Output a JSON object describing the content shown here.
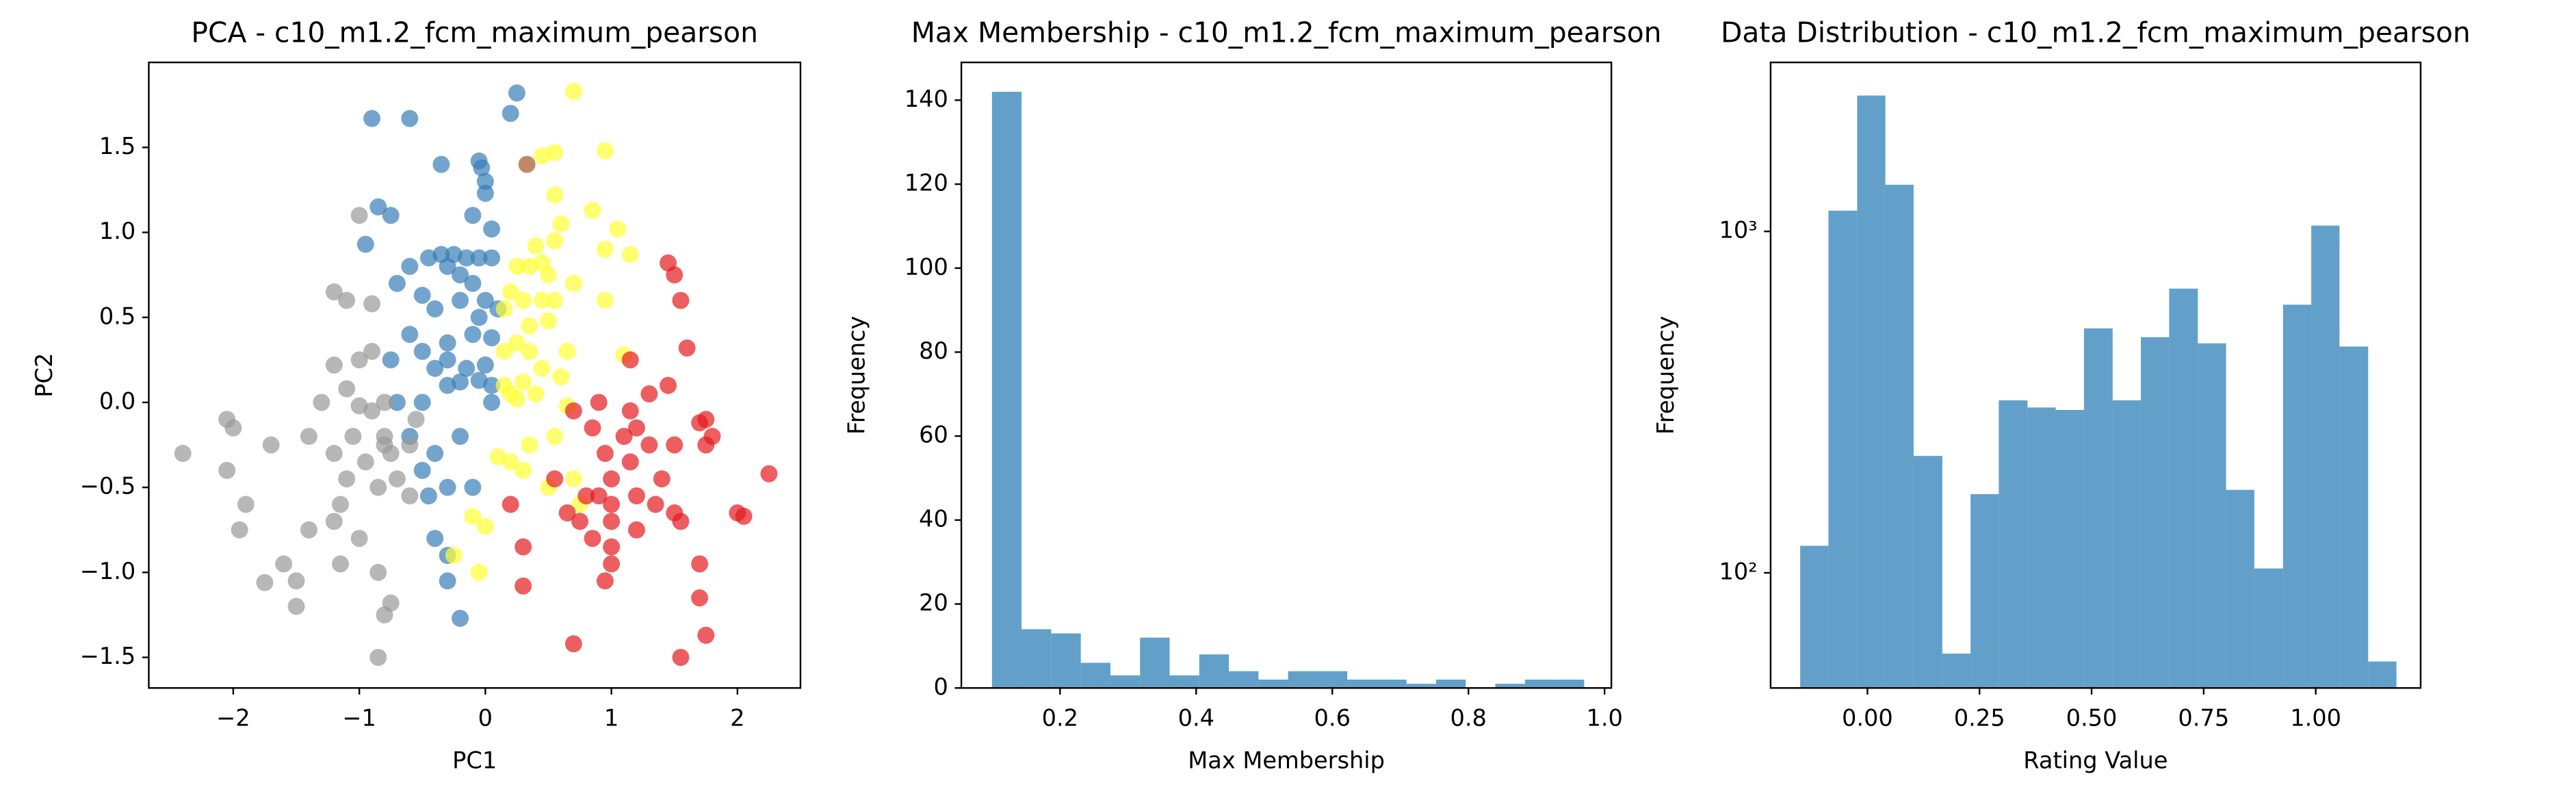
{
  "chart_data": [
    {
      "type": "scatter",
      "title": "PCA - c10_m1.2_fcm_maximum_pearson",
      "xlabel": "PC1",
      "ylabel": "PC2",
      "xlim": [
        -2.67,
        2.5
      ],
      "ylim": [
        -1.68,
        2.0
      ],
      "xticks": [
        {
          "value": -2,
          "label": "−2"
        },
        {
          "value": -1,
          "label": "−1"
        },
        0,
        1,
        2
      ],
      "yticks": [
        {
          "value": -1.5,
          "label": "−1.5"
        },
        {
          "value": -1.0,
          "label": "−1.0"
        },
        {
          "value": -0.5,
          "label": "−0.5"
        },
        {
          "value": 0.0,
          "label": "0.0"
        },
        0.5,
        {
          "value": 1.0,
          "label": "1.0"
        },
        1.5
      ],
      "series": [
        {
          "color": "#377eb8",
          "x": [
            -0.9,
            -0.6,
            0.2,
            0.25,
            -0.05,
            -0.03,
            0.0,
            -0.35,
            -0.85,
            -0.75,
            -0.1,
            0.0,
            0.05,
            -0.95,
            -0.6,
            -0.7,
            -0.45,
            -0.35,
            -0.25,
            -0.15,
            -0.05,
            0.05,
            -0.2,
            -0.1,
            -0.3,
            -0.5,
            -0.4,
            -0.2,
            0.0,
            0.1,
            -0.05,
            -0.6,
            -0.3,
            -0.1,
            0.05,
            -0.5,
            -0.75,
            -0.4,
            -0.3,
            -0.15,
            0.0,
            -0.3,
            -0.2,
            -0.05,
            0.05,
            -0.7,
            -0.5,
            -0.6,
            -0.4,
            -0.5,
            -0.3,
            -0.45,
            -0.4,
            -0.3,
            -0.3,
            -0.2,
            -0.1,
            -0.2,
            0.05
          ],
          "values": [
            1.67,
            1.67,
            1.7,
            1.82,
            1.42,
            1.38,
            1.3,
            1.4,
            1.15,
            1.1,
            1.1,
            1.23,
            1.02,
            0.93,
            0.8,
            0.7,
            0.85,
            0.87,
            0.87,
            0.85,
            0.85,
            0.85,
            0.75,
            0.7,
            0.8,
            0.63,
            0.55,
            0.6,
            0.6,
            0.55,
            0.5,
            0.4,
            0.35,
            0.4,
            0.38,
            0.3,
            0.25,
            0.2,
            0.25,
            0.2,
            0.22,
            0.1,
            0.12,
            0.13,
            0.1,
            0.0,
            0.0,
            -0.2,
            -0.3,
            -0.4,
            -0.5,
            -0.55,
            -0.8,
            -0.9,
            -1.05,
            -1.27,
            -0.5,
            -0.2,
            0.0
          ]
        },
        {
          "color": "#999999",
          "x": [
            -2.4,
            -2.05,
            -2.0,
            -2.05,
            -1.9,
            -1.95,
            -1.7,
            -1.4,
            -1.6,
            -1.75,
            -1.5,
            -1.4,
            -1.5,
            -1.2,
            -1.1,
            -1.2,
            -1.1,
            -1.0,
            -1.0,
            -0.9,
            -0.9,
            -1.0,
            -1.3,
            -1.2,
            -1.1,
            -1.05,
            -0.95,
            -0.8,
            -0.75,
            -0.8,
            -0.7,
            -0.85,
            -0.6,
            -1.15,
            -1.2,
            -1.0,
            -1.15,
            -0.85,
            -0.75,
            -0.8,
            -0.85,
            -0.6,
            -0.55,
            -0.8,
            -0.9
          ],
          "values": [
            -0.3,
            -0.1,
            -0.15,
            -0.4,
            -0.6,
            -0.75,
            -0.25,
            -0.2,
            -0.95,
            -1.06,
            -1.05,
            -0.75,
            -1.2,
            0.65,
            0.6,
            0.22,
            0.08,
            0.25,
            -0.02,
            0.3,
            0.58,
            1.1,
            0.0,
            -0.3,
            -0.45,
            -0.2,
            -0.35,
            -0.25,
            -0.3,
            -0.2,
            -0.45,
            -0.5,
            -0.55,
            -0.6,
            -0.7,
            -0.8,
            -0.95,
            -1.0,
            -1.18,
            -1.25,
            -1.5,
            -0.25,
            -0.1,
            0.0,
            -0.05
          ]
        },
        {
          "color": "#ffff33",
          "x": [
            0.7,
            0.55,
            0.95,
            0.45,
            0.55,
            0.6,
            0.85,
            1.05,
            0.55,
            0.4,
            0.45,
            0.25,
            0.35,
            0.95,
            1.15,
            0.7,
            0.55,
            0.45,
            0.3,
            0.2,
            0.15,
            0.35,
            0.5,
            0.25,
            0.15,
            0.35,
            0.45,
            0.65,
            0.95,
            1.1,
            0.6,
            0.3,
            0.15,
            0.25,
            0.4,
            0.65,
            0.1,
            0.2,
            0.3,
            0.35,
            0.55,
            0.7,
            0.75,
            0.5,
            -0.1,
            0.0,
            -0.25,
            -0.05,
            0.2,
            0.5
          ],
          "values": [
            1.83,
            1.47,
            1.48,
            1.45,
            1.22,
            1.05,
            1.13,
            1.02,
            0.95,
            0.92,
            0.82,
            0.8,
            0.8,
            0.9,
            0.87,
            0.7,
            0.6,
            0.6,
            0.6,
            0.65,
            0.55,
            0.45,
            0.48,
            0.35,
            0.3,
            0.3,
            0.2,
            0.3,
            0.6,
            0.28,
            0.15,
            0.12,
            0.1,
            0.02,
            0.05,
            -0.02,
            -0.32,
            -0.35,
            -0.4,
            -0.25,
            -0.2,
            -0.45,
            -0.6,
            -0.5,
            -0.67,
            -0.73,
            -0.9,
            -1.0,
            0.05,
            0.75
          ]
        },
        {
          "color": "#e41a1c",
          "x": [
            1.45,
            1.5,
            1.55,
            1.6,
            1.15,
            1.15,
            1.3,
            1.45,
            1.7,
            1.2,
            1.3,
            1.5,
            1.75,
            1.4,
            1.15,
            1.0,
            0.9,
            1.0,
            1.2,
            1.35,
            1.5,
            1.55,
            1.2,
            1.0,
            0.8,
            0.65,
            0.75,
            0.85,
            1.0,
            0.3,
            1.0,
            0.95,
            1.7,
            1.7,
            1.75,
            1.55,
            0.7,
            0.3,
            2.0,
            2.05,
            2.25,
            1.8,
            1.75,
            0.85,
            0.7,
            0.55,
            1.1,
            0.9,
            0.2,
            0.95
          ],
          "values": [
            0.82,
            0.75,
            0.6,
            0.32,
            0.25,
            -0.05,
            0.05,
            0.1,
            -0.12,
            -0.15,
            -0.25,
            -0.25,
            -0.25,
            -0.45,
            -0.35,
            -0.45,
            -0.55,
            -0.6,
            -0.55,
            -0.6,
            -0.65,
            -0.7,
            -0.75,
            -0.7,
            -0.55,
            -0.65,
            -0.7,
            -0.8,
            -0.85,
            -0.85,
            -0.95,
            -1.05,
            -0.95,
            -1.15,
            -1.37,
            -1.5,
            -1.42,
            -1.08,
            -0.65,
            -0.67,
            -0.42,
            -0.2,
            -0.1,
            -0.15,
            -0.05,
            -0.45,
            -0.2,
            0.0,
            -0.6,
            -0.3
          ]
        },
        {
          "color": "#a65628",
          "x": [
            0.33
          ],
          "values": [
            1.4
          ]
        }
      ]
    },
    {
      "type": "histogram",
      "title": "Max Membership - c10_m1.2_fcm_maximum_pearson",
      "xlabel": "Max Membership",
      "ylabel": "Frequency",
      "color": "#1f77b4",
      "xlim": [
        0.055,
        1.01
      ],
      "ylim": [
        0,
        149
      ],
      "xticks": [
        0.2,
        0.4,
        0.6,
        0.8,
        {
          "value": 1.0,
          "label": "1.0"
        }
      ],
      "yticks": [
        0,
        20,
        40,
        60,
        80,
        100,
        120,
        140
      ],
      "bins": [
        0.1,
        0.1435,
        0.187,
        0.2305,
        0.274,
        0.3175,
        0.361,
        0.4045,
        0.448,
        0.4915,
        0.535,
        0.5785,
        0.622,
        0.6655,
        0.709,
        0.7525,
        0.796,
        0.8395,
        0.883,
        0.9265,
        0.97
      ],
      "values": [
        142,
        14,
        13,
        6,
        3,
        12,
        3,
        8,
        4,
        2,
        4,
        4,
        2,
        2,
        1,
        2,
        0,
        1,
        2,
        2
      ]
    },
    {
      "type": "histogram",
      "title": "Data Distribution - c10_m1.2_fcm_maximum_pearson",
      "xlabel": "Rating Value",
      "ylabel": "Frequency",
      "color": "#1f77b4",
      "ylog": true,
      "xlim": [
        -0.216,
        1.234
      ],
      "ylim": [
        46,
        3126
      ],
      "xticks": [
        {
          "value": 0.0,
          "label": "0.00"
        },
        0.25,
        {
          "value": 0.5,
          "label": "0.50"
        },
        0.75,
        {
          "value": 1.0,
          "label": "1.00"
        }
      ],
      "yticks": [
        {
          "value": 100,
          "label": "10²"
        },
        {
          "value": 1000,
          "label": "10³"
        }
      ],
      "bins": [
        -0.15,
        -0.087,
        -0.023,
        0.04,
        0.103,
        0.167,
        0.23,
        0.293,
        0.357,
        0.42,
        0.483,
        0.547,
        0.61,
        0.673,
        0.737,
        0.8,
        0.863,
        0.927,
        0.99,
        1.053,
        1.117,
        1.18
      ],
      "values": [
        120,
        1150,
        2500,
        1370,
        220,
        58,
        170,
        320,
        305,
        300,
        520,
        320,
        490,
        680,
        470,
        175,
        103,
        610,
        1040,
        460,
        55
      ]
    }
  ]
}
